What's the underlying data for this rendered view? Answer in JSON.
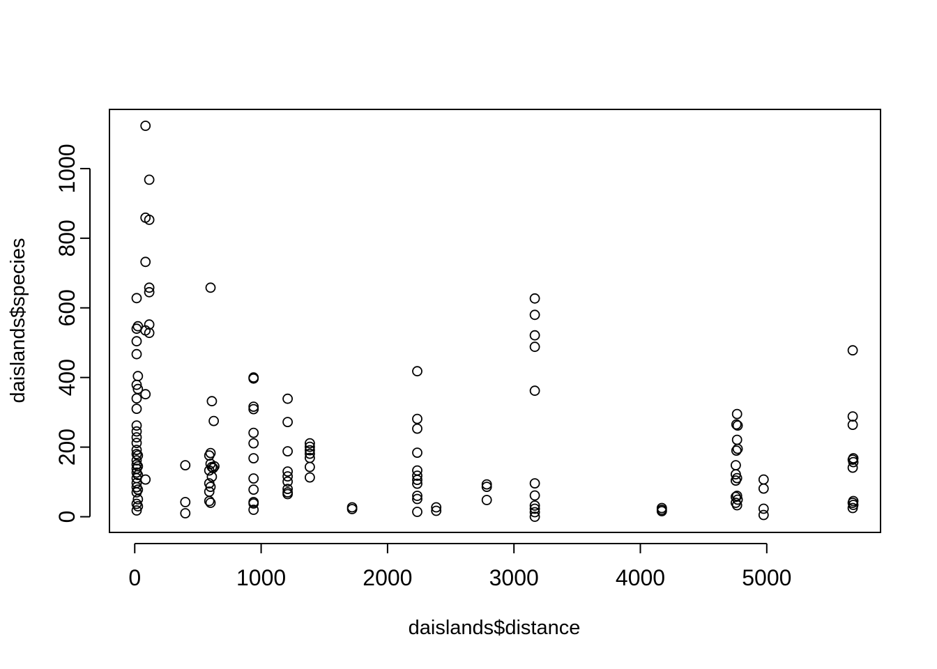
{
  "chart_data": {
    "type": "scatter",
    "title": "",
    "xlabel": "daislands$distance",
    "ylabel": "daislands$species",
    "xlim": [
      -200,
      5900
    ],
    "ylim": [
      -45,
      1170
    ],
    "x_ticks": [
      0,
      1000,
      2000,
      3000,
      4000,
      5000
    ],
    "y_ticks": [
      0,
      200,
      400,
      600,
      800,
      1000
    ],
    "grid": false,
    "legend": "none",
    "point_color": "#000000",
    "points": [
      [
        85,
        1123
      ],
      [
        115,
        968
      ],
      [
        85,
        859
      ],
      [
        115,
        853
      ],
      [
        85,
        732
      ],
      [
        115,
        658
      ],
      [
        115,
        645
      ],
      [
        15,
        628
      ],
      [
        115,
        552
      ],
      [
        25,
        547
      ],
      [
        15,
        540
      ],
      [
        85,
        535
      ],
      [
        115,
        528
      ],
      [
        15,
        504
      ],
      [
        15,
        467
      ],
      [
        25,
        404
      ],
      [
        15,
        379
      ],
      [
        25,
        367
      ],
      [
        85,
        352
      ],
      [
        15,
        340
      ],
      [
        15,
        310
      ],
      [
        15,
        262
      ],
      [
        15,
        245
      ],
      [
        15,
        228
      ],
      [
        15,
        212
      ],
      [
        15,
        192
      ],
      [
        15,
        180
      ],
      [
        25,
        176
      ],
      [
        15,
        162
      ],
      [
        15,
        150
      ],
      [
        25,
        145
      ],
      [
        15,
        138
      ],
      [
        15,
        127
      ],
      [
        25,
        120
      ],
      [
        15,
        111
      ],
      [
        85,
        107
      ],
      [
        15,
        97
      ],
      [
        15,
        85
      ],
      [
        25,
        78
      ],
      [
        15,
        70
      ],
      [
        25,
        50
      ],
      [
        15,
        37
      ],
      [
        25,
        30
      ],
      [
        15,
        18
      ],
      [
        400,
        148
      ],
      [
        400,
        42
      ],
      [
        400,
        10
      ],
      [
        600,
        658
      ],
      [
        610,
        332
      ],
      [
        625,
        275
      ],
      [
        600,
        183
      ],
      [
        590,
        176
      ],
      [
        600,
        152
      ],
      [
        630,
        145
      ],
      [
        610,
        143
      ],
      [
        620,
        140
      ],
      [
        590,
        133
      ],
      [
        610,
        115
      ],
      [
        590,
        96
      ],
      [
        600,
        86
      ],
      [
        590,
        72
      ],
      [
        590,
        45
      ],
      [
        600,
        40
      ],
      [
        940,
        400
      ],
      [
        940,
        397
      ],
      [
        940,
        316
      ],
      [
        940,
        309
      ],
      [
        940,
        241
      ],
      [
        940,
        211
      ],
      [
        940,
        168
      ],
      [
        940,
        110
      ],
      [
        940,
        78
      ],
      [
        940,
        42
      ],
      [
        940,
        38
      ],
      [
        940,
        20
      ],
      [
        1210,
        339
      ],
      [
        1210,
        272
      ],
      [
        1210,
        188
      ],
      [
        1210,
        130
      ],
      [
        1210,
        116
      ],
      [
        1210,
        101
      ],
      [
        1210,
        80
      ],
      [
        1210,
        70
      ],
      [
        1210,
        65
      ],
      [
        1385,
        211
      ],
      [
        1385,
        201
      ],
      [
        1385,
        191
      ],
      [
        1385,
        181
      ],
      [
        1385,
        169
      ],
      [
        1385,
        143
      ],
      [
        1385,
        113
      ],
      [
        1720,
        27
      ],
      [
        1720,
        22
      ],
      [
        2235,
        418
      ],
      [
        2235,
        281
      ],
      [
        2235,
        253
      ],
      [
        2235,
        184
      ],
      [
        2235,
        133
      ],
      [
        2235,
        118
      ],
      [
        2235,
        106
      ],
      [
        2235,
        95
      ],
      [
        2235,
        60
      ],
      [
        2235,
        51
      ],
      [
        2235,
        14
      ],
      [
        2385,
        27
      ],
      [
        2385,
        17
      ],
      [
        2785,
        93
      ],
      [
        2785,
        86
      ],
      [
        2785,
        48
      ],
      [
        3165,
        627
      ],
      [
        3165,
        580
      ],
      [
        3165,
        521
      ],
      [
        3165,
        488
      ],
      [
        3165,
        362
      ],
      [
        3165,
        96
      ],
      [
        3165,
        61
      ],
      [
        3165,
        32
      ],
      [
        3165,
        23
      ],
      [
        3165,
        13
      ],
      [
        3165,
        0
      ],
      [
        4170,
        25
      ],
      [
        4170,
        20
      ],
      [
        4170,
        16
      ],
      [
        4765,
        295
      ],
      [
        4760,
        265
      ],
      [
        4770,
        262
      ],
      [
        4765,
        221
      ],
      [
        4770,
        195
      ],
      [
        4760,
        190
      ],
      [
        4755,
        148
      ],
      [
        4755,
        122
      ],
      [
        4765,
        111
      ],
      [
        4755,
        104
      ],
      [
        4765,
        60
      ],
      [
        4755,
        57
      ],
      [
        4770,
        49
      ],
      [
        4755,
        40
      ],
      [
        4765,
        33
      ],
      [
        4975,
        107
      ],
      [
        4975,
        81
      ],
      [
        4975,
        23
      ],
      [
        4975,
        5
      ],
      [
        5680,
        478
      ],
      [
        5680,
        288
      ],
      [
        5680,
        264
      ],
      [
        5685,
        168
      ],
      [
        5680,
        164
      ],
      [
        5685,
        157
      ],
      [
        5680,
        141
      ],
      [
        5685,
        45
      ],
      [
        5680,
        40
      ],
      [
        5685,
        34
      ],
      [
        5680,
        25
      ]
    ]
  }
}
